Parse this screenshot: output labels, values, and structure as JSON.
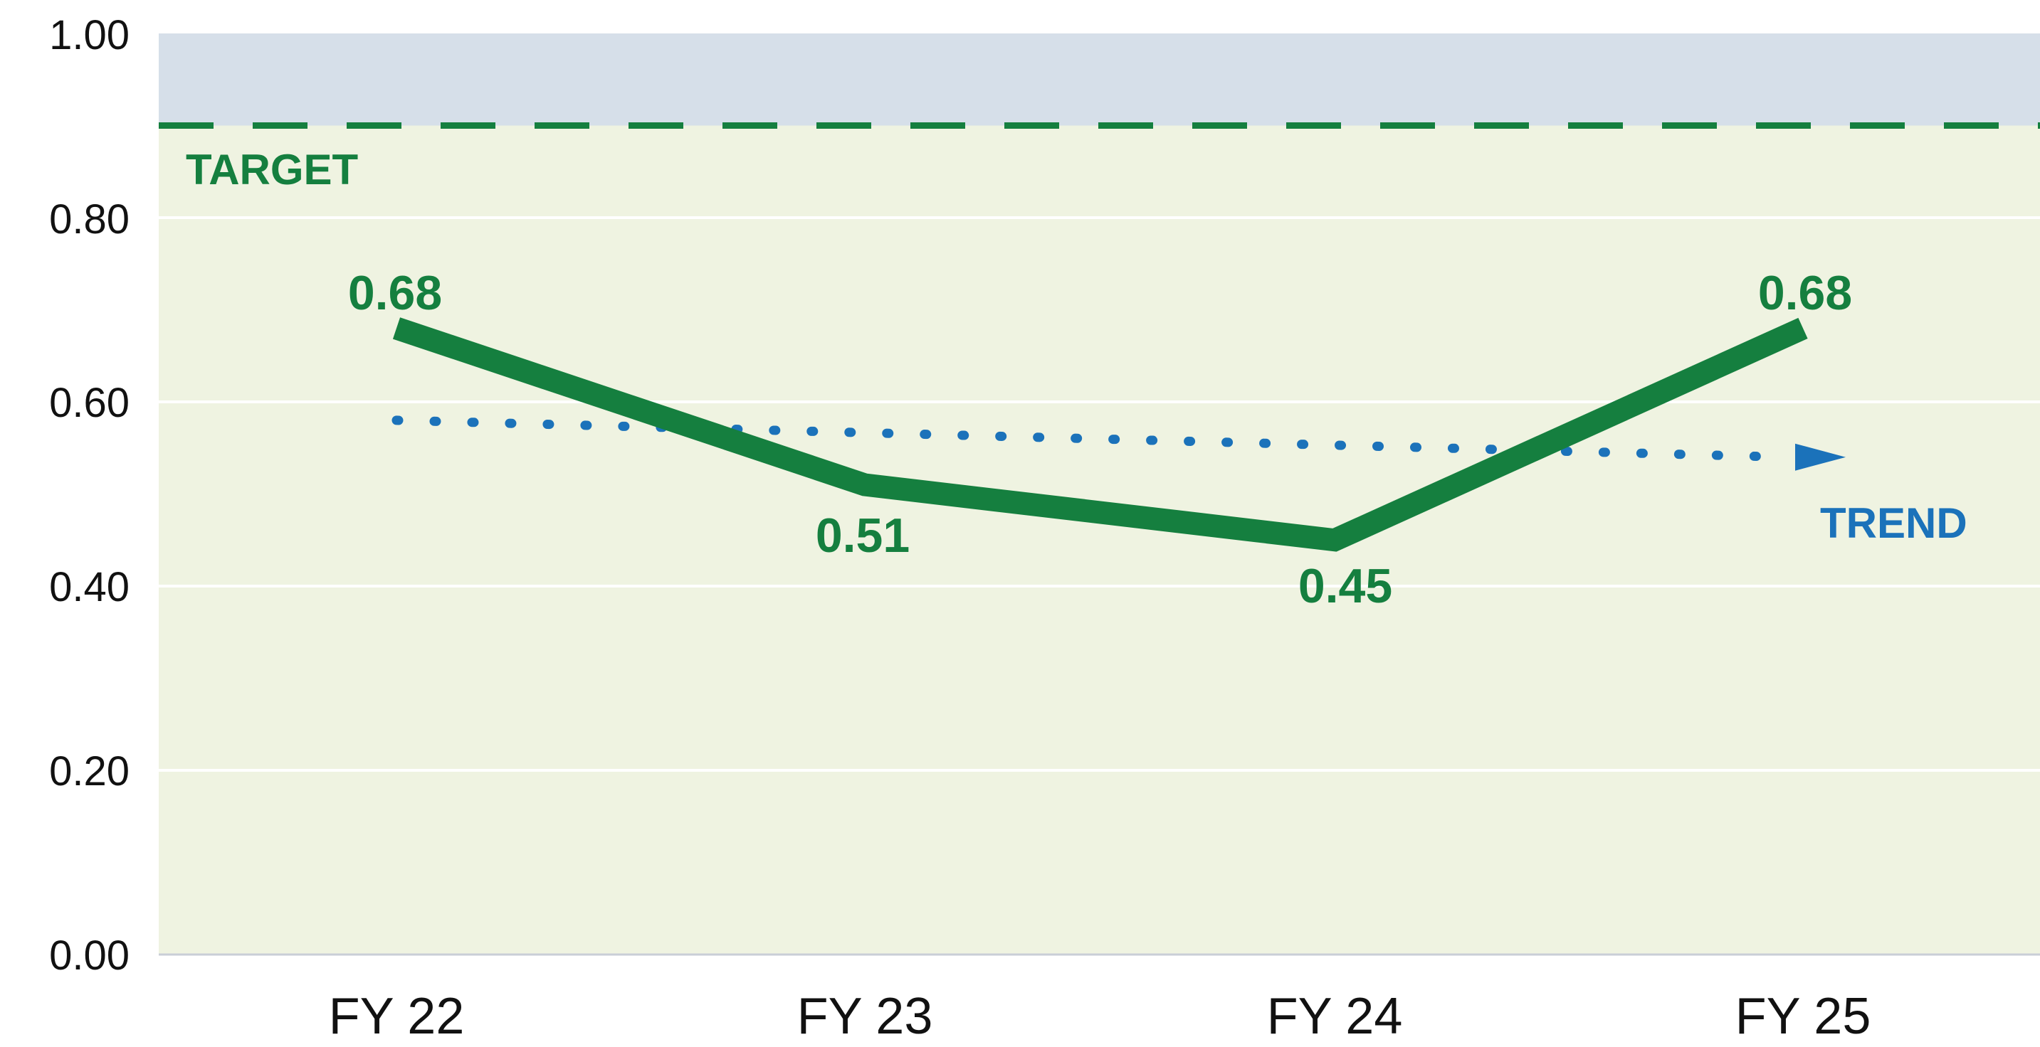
{
  "chart_data": {
    "type": "line",
    "title": "",
    "xlabel": "",
    "ylabel": "",
    "categories": [
      "FY 22",
      "FY 23",
      "FY 24",
      "FY 25"
    ],
    "series": [
      {
        "name": "Actual",
        "values": [
          0.68,
          0.51,
          0.45,
          0.68
        ],
        "color": "#157f3f"
      }
    ],
    "value_labels": [
      "0.68",
      "0.51",
      "0.45",
      "0.68"
    ],
    "ylim": [
      0.0,
      1.0
    ],
    "yticks": [
      0.0,
      0.2,
      0.4,
      0.6,
      0.8,
      1.0
    ],
    "ytick_labels": [
      "0.00",
      "0.20",
      "0.40",
      "0.60",
      "0.80",
      "1.00"
    ],
    "grid": {
      "horizontal": true,
      "vertical": false
    },
    "legend": null,
    "annotations": {
      "target": {
        "label": "TARGET",
        "value": 0.9,
        "style": "dashed",
        "color": "#157f3f",
        "band_above_color": "#d6dfe9"
      },
      "trend": {
        "label": "TREND",
        "start": 0.58,
        "end": 0.54,
        "style": "dotted-arrow",
        "color": "#1b72ba"
      }
    }
  },
  "colors": {
    "plot_background": "#eff3e1",
    "target_band": "#d6dfe9",
    "gridline": "#ffffff",
    "baseline": "#c9ced6",
    "series_green": "#157f3f",
    "trend_blue": "#1b72ba",
    "axis_text": "#111111"
  }
}
